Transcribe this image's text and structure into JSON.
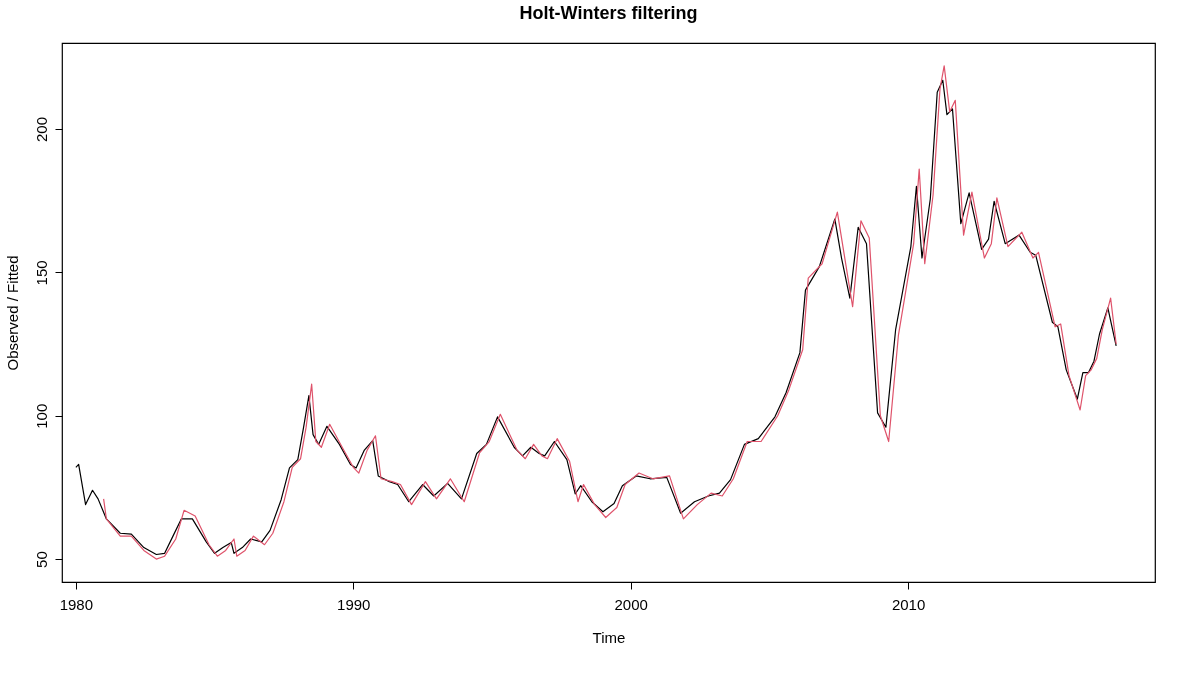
{
  "chart_data": {
    "type": "line",
    "title": "Holt-Winters filtering",
    "xlabel": "Time",
    "ylabel": "Observed / Fitted",
    "xlim": [
      1979.5,
      2018.9
    ],
    "xticks": [
      1980,
      1990,
      2000,
      2010
    ],
    "ylim": [
      42,
      230
    ],
    "yticks": [
      50,
      100,
      150,
      200
    ],
    "grid": false,
    "legend": false,
    "marker": "none",
    "line_style": "solid",
    "series": [
      {
        "color": "#000000",
        "x": [
          1980.0,
          1980.1,
          1980.35,
          1980.6,
          1980.8,
          1981.1,
          1981.6,
          1982.0,
          1982.45,
          1982.9,
          1983.2,
          1983.5,
          1983.8,
          1984.2,
          1984.7,
          1985.0,
          1985.3,
          1985.6,
          1985.7,
          1986.0,
          1986.3,
          1986.7,
          1987.0,
          1987.4,
          1987.7,
          1988.0,
          1988.2,
          1988.4,
          1988.55,
          1988.75,
          1989.05,
          1989.5,
          1989.9,
          1990.1,
          1990.4,
          1990.7,
          1990.9,
          1991.3,
          1991.6,
          1992.0,
          1992.5,
          1992.9,
          1993.4,
          1993.9,
          1994.45,
          1994.8,
          1995.2,
          1995.8,
          1996.1,
          1996.4,
          1996.7,
          1996.9,
          1997.25,
          1997.7,
          1998.0,
          1998.2,
          1998.6,
          1999.0,
          1999.4,
          1999.7,
          2000.2,
          2000.7,
          2001.3,
          2001.8,
          2002.3,
          2002.8,
          2003.2,
          2003.6,
          2004.1,
          2004.6,
          2005.2,
          2005.6,
          2006.1,
          2006.3,
          2006.8,
          2007.36,
          2007.6,
          2007.9,
          2008.2,
          2008.5,
          2008.9,
          2009.2,
          2009.55,
          2010.1,
          2010.3,
          2010.5,
          2010.8,
          2011.05,
          2011.25,
          2011.4,
          2011.6,
          2011.9,
          2012.2,
          2012.65,
          2012.9,
          2013.1,
          2013.5,
          2014.0,
          2014.4,
          2014.6,
          2015.2,
          2015.4,
          2015.7,
          2016.1,
          2016.3,
          2016.5,
          2016.7,
          2016.9,
          2017.2,
          2017.5
        ],
        "values": [
          82,
          83,
          69,
          74,
          71,
          64,
          59,
          58.7,
          54,
          51.6,
          52,
          58,
          64,
          64,
          56,
          52,
          54,
          55.8,
          52,
          54,
          57,
          56,
          60,
          70.7,
          81.8,
          84.7,
          95.5,
          107,
          93.4,
          90,
          96.3,
          90,
          83,
          81.8,
          88,
          91.3,
          79,
          77,
          76,
          70,
          76,
          72,
          76.4,
          71,
          86.8,
          90,
          99.6,
          89,
          86,
          89,
          86.8,
          86,
          91,
          84.7,
          72.7,
          75.6,
          70,
          66.5,
          69.4,
          75.6,
          79,
          78,
          78.5,
          66,
          70,
          72,
          73,
          77.7,
          90,
          92,
          99.6,
          108,
          122,
          143.8,
          152,
          168.6,
          155,
          141,
          165.7,
          160,
          101,
          96,
          130,
          159,
          180,
          155,
          175.6,
          212.8,
          217,
          205,
          207,
          167,
          177.7,
          158,
          161.6,
          174.8,
          160,
          163,
          157,
          156,
          132.6,
          131,
          116,
          105.8,
          115,
          115,
          119,
          128.5,
          137.6,
          124.4
        ]
      },
      {
        "color": "#df536b",
        "x": [
          1981.0,
          1981.1,
          1981.6,
          1982.0,
          1982.45,
          1982.9,
          1983.2,
          1983.6,
          1983.9,
          1984.3,
          1984.8,
          1985.1,
          1985.4,
          1985.7,
          1985.8,
          1986.1,
          1986.4,
          1986.8,
          1987.1,
          1987.5,
          1987.8,
          1988.1,
          1988.3,
          1988.5,
          1988.65,
          1988.85,
          1989.15,
          1989.6,
          1990.0,
          1990.2,
          1990.5,
          1990.8,
          1991.0,
          1991.4,
          1991.7,
          1992.1,
          1992.6,
          1993.0,
          1993.5,
          1994.0,
          1994.55,
          1994.9,
          1995.3,
          1995.9,
          1996.2,
          1996.5,
          1996.8,
          1997.0,
          1997.35,
          1997.8,
          1998.1,
          1998.3,
          1998.7,
          1999.1,
          1999.5,
          1999.8,
          2000.3,
          2000.8,
          2001.4,
          2001.9,
          2002.4,
          2002.9,
          2003.3,
          2003.7,
          2004.2,
          2004.7,
          2005.3,
          2005.7,
          2006.2,
          2006.4,
          2006.9,
          2007.45,
          2007.7,
          2008.0,
          2008.3,
          2008.6,
          2009.0,
          2009.3,
          2009.65,
          2010.2,
          2010.4,
          2010.6,
          2010.9,
          2011.15,
          2011.3,
          2011.5,
          2011.7,
          2012.0,
          2012.3,
          2012.75,
          2013.0,
          2013.2,
          2013.6,
          2014.1,
          2014.5,
          2014.7,
          2015.3,
          2015.5,
          2015.8,
          2016.2,
          2016.4,
          2016.6,
          2016.8,
          2017.0,
          2017.3,
          2017.5
        ],
        "values": [
          71,
          64,
          58,
          58,
          53,
          50,
          51,
          57,
          67,
          65,
          55,
          51,
          53,
          57,
          51,
          53,
          58,
          55,
          59,
          70,
          82,
          85,
          96,
          111,
          91,
          89,
          97,
          89,
          82,
          80,
          88,
          93,
          78,
          77,
          76,
          69,
          77,
          71,
          78,
          70,
          87,
          91,
          100.5,
          88,
          85,
          90,
          86,
          85,
          92,
          84,
          70,
          76,
          69,
          64.5,
          68,
          76,
          80,
          78,
          79,
          64,
          69,
          73,
          72,
          78,
          91,
          91,
          100,
          109,
          123,
          148,
          153,
          171,
          156,
          138,
          168,
          162,
          100,
          91,
          128,
          160,
          186,
          153,
          177,
          214,
          222,
          206,
          210,
          163,
          178,
          155,
          160,
          176,
          159,
          164,
          155,
          157,
          131,
          132,
          114,
          102,
          114,
          116,
          120,
          130,
          141,
          125
        ]
      }
    ]
  }
}
